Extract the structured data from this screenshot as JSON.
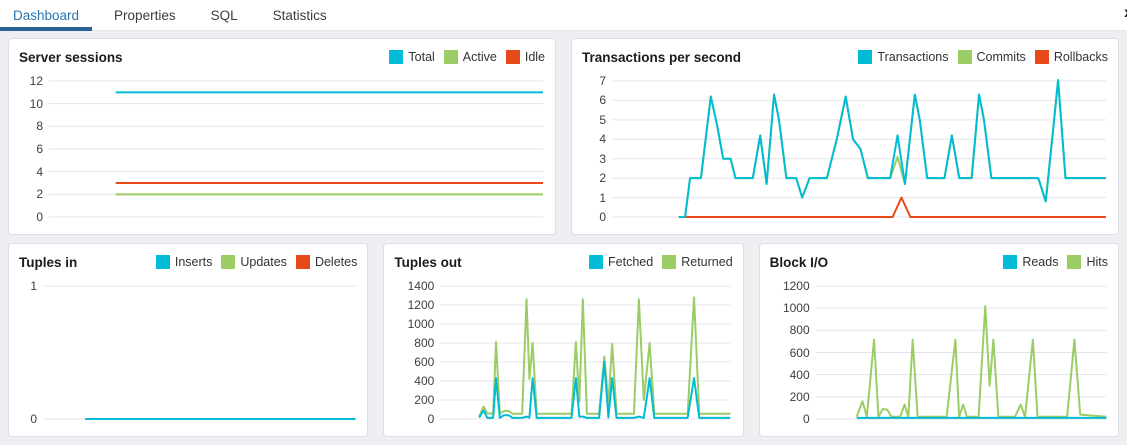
{
  "tabs": {
    "items": [
      {
        "label": "Dashboard",
        "active": true
      },
      {
        "label": "Properties",
        "active": false
      },
      {
        "label": "SQL",
        "active": false
      },
      {
        "label": "Statistics",
        "active": false
      }
    ],
    "close_glyph": "x"
  },
  "colors": {
    "active_tab_text": "#2a75b0",
    "active_tab_underline": "#2a6395",
    "series_cyan": "#00BCD4",
    "series_green": "#9CCC65",
    "series_red": "#E64A19",
    "gridline": "#e3e4ee",
    "panel_bg": "#ffffff",
    "page_bg": "#edeff3"
  },
  "panels": [
    {
      "title": "Server sessions",
      "type": "line",
      "ylim": [
        0,
        12
      ],
      "yticks": [
        12,
        10,
        8,
        6,
        4,
        2,
        0
      ],
      "series": [
        {
          "name": "Total",
          "color": "#00BCD4",
          "points": [
            [
              13.5,
              11
            ],
            [
              100,
              11
            ]
          ]
        },
        {
          "name": "Active",
          "color": "#9CCC65",
          "points": [
            [
              13.5,
              2
            ],
            [
              100,
              2
            ]
          ]
        },
        {
          "name": "Idle",
          "color": "#E64A19",
          "points": [
            [
              13.5,
              3
            ],
            [
              100,
              3
            ]
          ]
        }
      ]
    },
    {
      "title": "Transactions per second",
      "type": "line",
      "ylim": [
        0,
        7
      ],
      "yticks": [
        7,
        6,
        5,
        4,
        3,
        2,
        1,
        0
      ],
      "series": [
        {
          "name": "Transactions",
          "color": "#00BCD4",
          "points": [
            [
              13.5,
              0
            ],
            [
              14.8,
              0
            ],
            [
              15.8,
              2
            ],
            [
              18,
              2
            ],
            [
              20,
              6.2
            ],
            [
              21.3,
              4.7
            ],
            [
              22.5,
              3
            ],
            [
              24,
              3
            ],
            [
              25,
              2
            ],
            [
              28.5,
              2
            ],
            [
              30,
              4.2
            ],
            [
              31.3,
              1.7
            ],
            [
              32.8,
              6.3
            ],
            [
              33.8,
              5
            ],
            [
              35.3,
              2
            ],
            [
              37.3,
              2
            ],
            [
              38.5,
              1
            ],
            [
              40,
              2
            ],
            [
              43.5,
              2
            ],
            [
              45.5,
              4
            ],
            [
              47.3,
              6.2
            ],
            [
              48.8,
              4
            ],
            [
              50.3,
              3.5
            ],
            [
              51.8,
              2
            ],
            [
              56.3,
              2
            ],
            [
              57.8,
              4.2
            ],
            [
              59.3,
              1.7
            ],
            [
              61.3,
              6.3
            ],
            [
              62.3,
              5
            ],
            [
              63.8,
              2
            ],
            [
              67.3,
              2
            ],
            [
              68.8,
              4.2
            ],
            [
              70.3,
              2
            ],
            [
              72.8,
              2
            ],
            [
              74.3,
              6.3
            ],
            [
              75.3,
              5
            ],
            [
              76.8,
              2
            ],
            [
              86.3,
              2
            ],
            [
              87.8,
              0.8
            ],
            [
              89.3,
              4.5
            ],
            [
              90.3,
              7.05
            ],
            [
              91.8,
              2
            ],
            [
              100,
              2
            ]
          ]
        },
        {
          "name": "Commits",
          "color": "#9CCC65",
          "points": [
            [
              13.5,
              0
            ],
            [
              14.8,
              0
            ],
            [
              15.8,
              2
            ],
            [
              18,
              2
            ],
            [
              20,
              6.2
            ],
            [
              21.3,
              4.7
            ],
            [
              22.5,
              3
            ],
            [
              24,
              3
            ],
            [
              25,
              2
            ],
            [
              28.5,
              2
            ],
            [
              30,
              4.2
            ],
            [
              31.3,
              1.7
            ],
            [
              32.8,
              6.3
            ],
            [
              33.8,
              5
            ],
            [
              35.3,
              2
            ],
            [
              37.3,
              2
            ],
            [
              38.5,
              1
            ],
            [
              40,
              2
            ],
            [
              43.5,
              2
            ],
            [
              45.5,
              4
            ],
            [
              47.3,
              6.2
            ],
            [
              48.8,
              4
            ],
            [
              50.3,
              3.5
            ],
            [
              51.8,
              2
            ],
            [
              56.3,
              2
            ],
            [
              57.8,
              3.1
            ],
            [
              59.3,
              1.7
            ],
            [
              61.3,
              6.3
            ],
            [
              62.3,
              5
            ],
            [
              63.8,
              2
            ],
            [
              67.3,
              2
            ],
            [
              68.8,
              4.2
            ],
            [
              70.3,
              2
            ],
            [
              72.8,
              2
            ],
            [
              74.3,
              6.3
            ],
            [
              75.3,
              5
            ],
            [
              76.8,
              2
            ],
            [
              86.3,
              2
            ],
            [
              87.8,
              0.8
            ],
            [
              89.3,
              4.5
            ],
            [
              90.3,
              7.05
            ],
            [
              91.8,
              2
            ],
            [
              100,
              2
            ]
          ]
        },
        {
          "name": "Rollbacks",
          "color": "#E64A19",
          "points": [
            [
              13.5,
              0
            ],
            [
              56.8,
              0
            ],
            [
              58.6,
              1
            ],
            [
              60.4,
              0
            ],
            [
              100,
              0
            ]
          ]
        }
      ]
    },
    {
      "title": "Tuples in",
      "type": "line",
      "ylim": [
        0,
        1
      ],
      "yticks": [
        1,
        0
      ],
      "series": [
        {
          "name": "Inserts",
          "color": "#00BCD4",
          "points": [
            [
              13.5,
              0
            ],
            [
              100,
              0
            ]
          ]
        },
        {
          "name": "Updates",
          "color": "#9CCC65",
          "points": [
            [
              13.5,
              0
            ],
            [
              100,
              0
            ]
          ]
        },
        {
          "name": "Deletes",
          "color": "#E64A19",
          "points": [
            [
              13.5,
              0
            ],
            [
              100,
              0
            ]
          ]
        }
      ]
    },
    {
      "title": "Tuples out",
      "type": "line",
      "ylim": [
        0,
        1400
      ],
      "yticks": [
        1400,
        1200,
        1000,
        800,
        600,
        400,
        200,
        0
      ],
      "series": [
        {
          "name": "Fetched",
          "color": "#00BCD4",
          "points": [
            [
              13.5,
              15
            ],
            [
              15,
              90
            ],
            [
              16.3,
              12
            ],
            [
              18.3,
              12
            ],
            [
              19.3,
              430
            ],
            [
              20.6,
              12
            ],
            [
              22,
              40
            ],
            [
              23.6,
              40
            ],
            [
              25,
              12
            ],
            [
              28.3,
              12
            ],
            [
              29.8,
              25
            ],
            [
              30.8,
              15
            ],
            [
              31.9,
              430
            ],
            [
              33.3,
              12
            ],
            [
              45.3,
              12
            ],
            [
              46.8,
              430
            ],
            [
              48,
              25
            ],
            [
              49.2,
              25
            ],
            [
              50.6,
              12
            ],
            [
              54.8,
              12
            ],
            [
              56.6,
              600
            ],
            [
              58,
              15
            ],
            [
              59.3,
              430
            ],
            [
              60.8,
              12
            ],
            [
              66.8,
              12
            ],
            [
              68.5,
              25
            ],
            [
              70.2,
              12
            ],
            [
              72.2,
              430
            ],
            [
              73.8,
              12
            ],
            [
              85.3,
              12
            ],
            [
              87.5,
              430
            ],
            [
              89.3,
              12
            ],
            [
              100,
              12
            ]
          ]
        },
        {
          "name": "Returned",
          "color": "#9CCC65",
          "points": [
            [
              13.5,
              25
            ],
            [
              15,
              130
            ],
            [
              16.3,
              60
            ],
            [
              18.3,
              55
            ],
            [
              19.3,
              810
            ],
            [
              20.6,
              55
            ],
            [
              22,
              85
            ],
            [
              23.6,
              85
            ],
            [
              25,
              55
            ],
            [
              28.3,
              55
            ],
            [
              29.8,
              1260
            ],
            [
              30.8,
              420
            ],
            [
              31.9,
              800
            ],
            [
              33.3,
              55
            ],
            [
              45.3,
              55
            ],
            [
              46.8,
              810
            ],
            [
              48,
              180
            ],
            [
              49.2,
              1260
            ],
            [
              50.6,
              55
            ],
            [
              54.8,
              55
            ],
            [
              56.6,
              660
            ],
            [
              58,
              160
            ],
            [
              59.3,
              790
            ],
            [
              60.8,
              55
            ],
            [
              66.8,
              55
            ],
            [
              68.5,
              1260
            ],
            [
              70.2,
              200
            ],
            [
              72.2,
              800
            ],
            [
              73.8,
              55
            ],
            [
              85.3,
              55
            ],
            [
              87.5,
              1280
            ],
            [
              89.3,
              55
            ],
            [
              100,
              55
            ]
          ]
        }
      ]
    },
    {
      "title": "Block I/O",
      "type": "line",
      "ylim": [
        0,
        1200
      ],
      "yticks": [
        1200,
        1000,
        800,
        600,
        400,
        200,
        0
      ],
      "series": [
        {
          "name": "Reads",
          "color": "#00BCD4",
          "points": [
            [
              14,
              10
            ],
            [
              100,
              10
            ]
          ]
        },
        {
          "name": "Hits",
          "color": "#9CCC65",
          "points": [
            [
              14,
              20
            ],
            [
              16,
              160
            ],
            [
              17.5,
              20
            ],
            [
              20,
              715
            ],
            [
              21.5,
              20
            ],
            [
              23,
              90
            ],
            [
              24.5,
              85
            ],
            [
              26,
              20
            ],
            [
              29,
              20
            ],
            [
              30.5,
              130
            ],
            [
              31.8,
              20
            ],
            [
              33.3,
              715
            ],
            [
              35,
              20
            ],
            [
              45,
              20
            ],
            [
              48,
              715
            ],
            [
              49.3,
              20
            ],
            [
              50.7,
              130
            ],
            [
              52,
              20
            ],
            [
              56,
              20
            ],
            [
              58.3,
              1020
            ],
            [
              59.8,
              300
            ],
            [
              61.1,
              715
            ],
            [
              62.8,
              20
            ],
            [
              68.5,
              20
            ],
            [
              70.5,
              130
            ],
            [
              72,
              20
            ],
            [
              74.7,
              715
            ],
            [
              76.3,
              20
            ],
            [
              86.5,
              20
            ],
            [
              89,
              715
            ],
            [
              91,
              40
            ],
            [
              100,
              20
            ]
          ]
        }
      ]
    }
  ]
}
